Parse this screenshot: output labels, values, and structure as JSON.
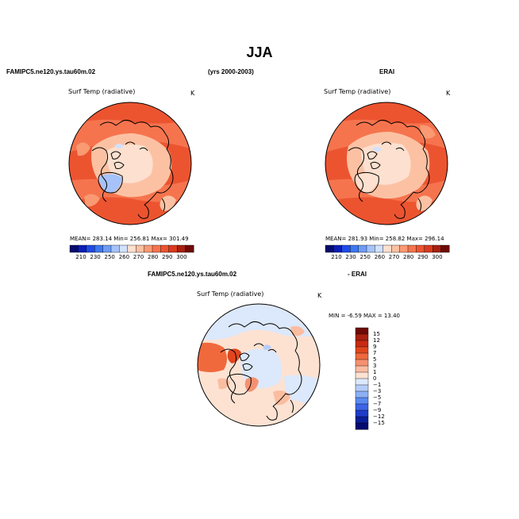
{
  "figure": {
    "title": "JJA",
    "left_case": "FAMIPC5.ne120.ys.tau60m.02",
    "years": "(yrs 2000-2003)",
    "right_case": "ERAI",
    "diff_case_left": "FAMIPC5.ne120.ys.tau60m.02",
    "diff_case_right": "- ERAI"
  },
  "panels": [
    {
      "variable": "Surf Temp (radiative)",
      "units": "K",
      "stats": "MEAN= 283.14   Min= 256.81   Max= 301.49",
      "colorbar_labels": [
        "210",
        "230",
        "250",
        "260",
        "270",
        "280",
        "290",
        "300"
      ]
    },
    {
      "variable": "Surf Temp (radiative)",
      "units": "K",
      "stats": "MEAN= 281.93   Min= 258.82   Max= 296.14",
      "colorbar_labels": [
        "210",
        "230",
        "250",
        "260",
        "270",
        "280",
        "290",
        "300"
      ]
    },
    {
      "variable": "Surf Temp (radiative)",
      "units": "K",
      "stats": "MIN =   -6.59  MAX =   13.40",
      "colorbar_labels": [
        "15",
        "12",
        "9",
        "7",
        "5",
        "3",
        "1",
        "0",
        "−1",
        "−3",
        "−5",
        "−7",
        "−9",
        "−12",
        "−15"
      ]
    }
  ],
  "colors": {
    "abs_scale": [
      "#050a6e",
      "#0a1eb4",
      "#1e4be6",
      "#3c78f0",
      "#6e9cf5",
      "#a5c3fa",
      "#d2e1fc",
      "#fde0cf",
      "#fcc1a3",
      "#f99a72",
      "#f5744e",
      "#ec5430",
      "#d93a1e",
      "#a82010",
      "#6e0a06"
    ],
    "diff_scale": [
      "#6e0a06",
      "#a82010",
      "#c82a14",
      "#e0461e",
      "#f0693c",
      "#f59170",
      "#fbbda0",
      "#fde2d2",
      "#dce8fb",
      "#b4cdf8",
      "#8cb0f5",
      "#5a8af0",
      "#3c64e6",
      "#1e3cc8",
      "#0a1e96",
      "#050a6e"
    ],
    "ocean_warm": "#ec5430",
    "ocean_mid": "#f5744e",
    "land_cool": "#fde0cf",
    "ice": "#a5c3fa",
    "diff_base": "#fde2d2",
    "diff_cool": "#dce8fb",
    "diff_warm": "#f0693c"
  }
}
